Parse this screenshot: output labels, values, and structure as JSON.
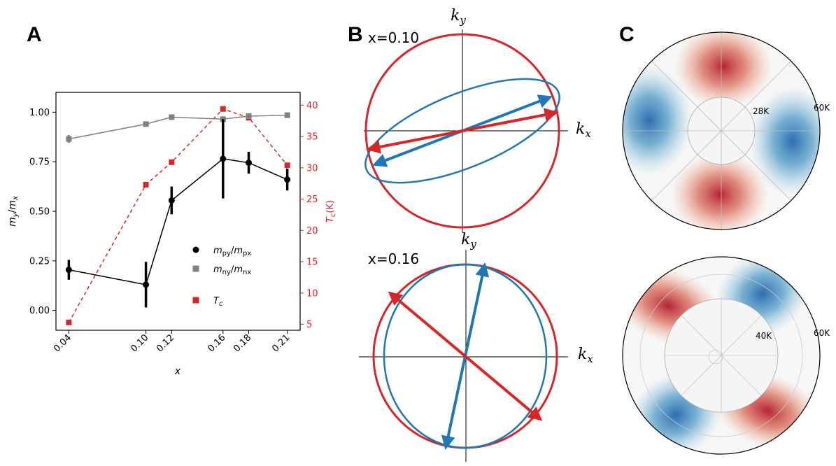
{
  "panels": {
    "a": "A",
    "b": "B",
    "c": "C"
  },
  "chart_data": [
    {
      "type": "line",
      "panel": "A",
      "x": [
        0.04,
        0.1,
        0.12,
        0.16,
        0.18,
        0.21
      ],
      "x_tick_labels": [
        "0.04",
        "0.10",
        "0.12",
        "0.16",
        "0.18",
        "0.21"
      ],
      "xlabel": "x",
      "ylabel": "m_y/m_x",
      "y2label": "T_c(K)",
      "ylim": [
        -0.1,
        1.1
      ],
      "y2lim": [
        4.05,
        42.05
      ],
      "y_ticks": [
        "0.00",
        "0.25",
        "0.50",
        "0.75",
        "1.00"
      ],
      "y2_ticks": [
        "5",
        "10",
        "15",
        "20",
        "25",
        "30",
        "35",
        "40"
      ],
      "colors": {
        "p": "#000000",
        "n": "#808080",
        "tc": "#d62728",
        "tc_axis": "#d62728"
      },
      "series": [
        {
          "name": "m_py/m_px",
          "key": "p",
          "values": [
            0.205,
            0.13,
            0.555,
            0.765,
            0.745,
            0.66
          ],
          "errors": [
            0.05,
            0.115,
            0.07,
            0.2,
            0.055,
            0.055
          ]
        },
        {
          "name": "m_ny/m_nx",
          "key": "n",
          "values": [
            0.865,
            0.94,
            0.975,
            0.965,
            0.98,
            0.985
          ],
          "errors": [
            0.02,
            0,
            0,
            0,
            0,
            0
          ]
        },
        {
          "name": "T_c",
          "key": "tc",
          "axis": "right",
          "values": [
            5.3,
            27.3,
            30.9,
            39.4,
            38.0,
            30.4
          ]
        }
      ],
      "legend": {
        "placement": "lower-right",
        "labels": [
          {
            "main": "m",
            "sub": "py",
            "sep": "/",
            "main2": "m",
            "sub2": "px"
          },
          {
            "main": "m",
            "sub": "ny",
            "sep": "/",
            "main2": "m",
            "sub2": "nx"
          },
          {
            "main": "T",
            "sub": "c"
          }
        ]
      },
      "ylabel_parts": {
        "main": "m",
        "sub": "y",
        "sep": "/",
        "main2": "m",
        "sub2": "x"
      },
      "y2label_parts": {
        "main": "T",
        "sub": "c",
        "suffix": "(K)"
      }
    },
    {
      "type": "diagram",
      "panel": "B",
      "axis_labels": {
        "kx_main": "k",
        "kx_sub": "x",
        "ky_main": "k",
        "ky_sub": "y"
      },
      "subplots": [
        {
          "label": "x=0.10",
          "blue_ellipse_tilt_deg": -22,
          "blue_axes_ratio": 0.36,
          "red_arrow_angle_deg": 11,
          "blue_arrow_angle_deg": 21
        },
        {
          "label": "x=0.16",
          "blue_ellipse_tilt_deg": 0,
          "blue_axes_ratio": 0.9,
          "red_arrow_angle_deg": -40,
          "blue_arrow_angle_deg": 78
        }
      ],
      "colors": {
        "red": "#d62728",
        "blue": "#1f77b4"
      }
    },
    {
      "type": "heatmap",
      "panel": "C",
      "subplots": [
        {
          "outer_label": "60K",
          "inner_label": "28K",
          "inner_radius_frac": 0.34
        },
        {
          "outer_label": "60K",
          "inner_label": "40K",
          "inner_radius_frac": 0.57
        }
      ],
      "colormap": [
        "#2166ac",
        "#f7f7f7",
        "#b2182b"
      ]
    }
  ]
}
